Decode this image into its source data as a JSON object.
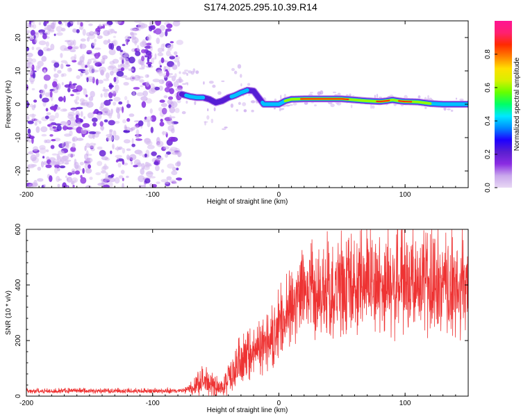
{
  "title": "S174.2025.295.10.39.R14",
  "colors": {
    "snr_line": "#ee3333",
    "frame": "#000000",
    "background": "#ffffff",
    "colorbar_stops": [
      "#e8d8f4",
      "#c9a8ec",
      "#8a2be2",
      "#5a1fd0",
      "#1e00ff",
      "#0088ff",
      "#00e8ff",
      "#00ff66",
      "#66ff00",
      "#d8f000",
      "#ffe000",
      "#ff8000",
      "#ff2a00",
      "#ff2070",
      "#ff1493"
    ]
  },
  "chart_data": [
    {
      "id": "spectrogram",
      "type": "heatmap",
      "xlabel": "Height of straight line (km)",
      "ylabel": "Frequency (Hz)",
      "xlim": [
        -200,
        150
      ],
      "ylim": [
        -25,
        25
      ],
      "xticks": [
        -200,
        -100,
        0,
        100
      ],
      "xticklabels": [
        "-200",
        "-100",
        "0",
        "100"
      ],
      "yticks": [
        -20,
        -10,
        0,
        10,
        20
      ],
      "yticklabels": [
        "-20",
        "-10",
        "0",
        "10",
        "20"
      ],
      "noise_region_x": [
        -200,
        -78
      ],
      "signal_track": {
        "x": [
          -77,
          -70,
          -65,
          -60,
          -55,
          -50,
          -45,
          -40,
          -35,
          -30,
          -25,
          -20,
          -16,
          -12,
          -8,
          -4,
          0,
          5,
          10,
          20,
          30,
          40,
          50,
          60,
          70,
          80,
          85,
          90,
          95,
          100,
          110,
          120,
          130,
          140,
          150
        ],
        "y": [
          3,
          2.3,
          2.0,
          2.0,
          1.5,
          0.5,
          1.0,
          2.0,
          2.6,
          3.5,
          4.2,
          4.0,
          2.0,
          0.0,
          0.0,
          0.0,
          0.0,
          1.0,
          1.5,
          1.6,
          1.6,
          1.6,
          1.6,
          1.3,
          1.0,
          0.8,
          1.0,
          1.3,
          1.0,
          0.8,
          0.7,
          0.2,
          0.0,
          0.0,
          0.0
        ],
        "strength": [
          0.35,
          0.45,
          0.5,
          0.4,
          0.35,
          0.3,
          0.3,
          0.35,
          0.45,
          0.5,
          0.4,
          0.3,
          0.3,
          0.45,
          0.5,
          0.5,
          0.55,
          0.6,
          0.7,
          0.9,
          0.95,
          0.95,
          0.9,
          0.8,
          0.7,
          0.9,
          0.95,
          0.75,
          0.85,
          0.9,
          0.8,
          0.6,
          0.55,
          0.6,
          0.5
        ]
      },
      "colorbar": {
        "label": "Normalized spectral amplitude",
        "range": [
          0,
          1
        ],
        "ticks": [
          0.0,
          0.2,
          0.4,
          0.6,
          0.8
        ],
        "ticklabels": [
          "0.0",
          "0.2",
          "0.4",
          "0.6",
          "0.8"
        ]
      }
    },
    {
      "id": "snr",
      "type": "line",
      "xlabel": "Height of straight line (km)",
      "ylabel": "SNR (10 * v/v)",
      "xlim": [
        -200,
        150
      ],
      "ylim": [
        0,
        600
      ],
      "xticks": [
        -200,
        -100,
        0,
        100
      ],
      "xticklabels": [
        "-200",
        "-100",
        "0",
        "100"
      ],
      "yticks": [
        0,
        200,
        400,
        600
      ],
      "yticklabels": [
        "0",
        "200",
        "400",
        "600"
      ],
      "envelope": {
        "x": [
          -200,
          -78,
          -70,
          -65,
          -60,
          -55,
          -50,
          -45,
          -40,
          -35,
          -30,
          -25,
          -20,
          -15,
          -10,
          -5,
          0,
          5,
          10,
          20,
          30,
          40,
          50,
          60,
          70,
          80,
          90,
          100,
          110,
          120,
          130,
          140,
          150
        ],
        "mean": [
          18,
          18,
          25,
          50,
          55,
          40,
          30,
          20,
          60,
          90,
          110,
          130,
          150,
          160,
          170,
          200,
          230,
          270,
          310,
          350,
          370,
          380,
          370,
          380,
          400,
          390,
          400,
          390,
          390,
          380,
          380,
          370,
          370
        ],
        "spread": [
          10,
          10,
          25,
          60,
          60,
          55,
          45,
          30,
          80,
          90,
          90,
          90,
          100,
          100,
          100,
          120,
          140,
          140,
          150,
          170,
          180,
          190,
          190,
          190,
          200,
          210,
          210,
          210,
          210,
          200,
          210,
          210,
          200
        ]
      }
    }
  ]
}
